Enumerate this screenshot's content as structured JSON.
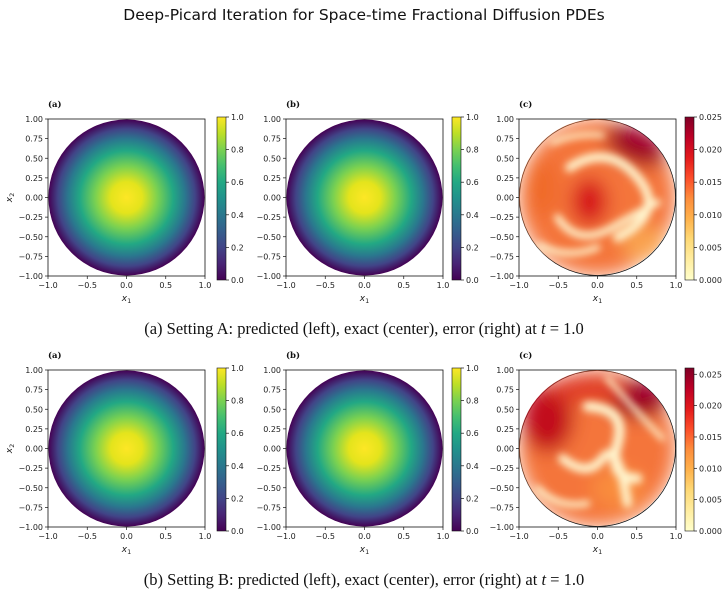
{
  "title": "Deep-Picard Iteration for Space-time Fractional Diffusion PDEs",
  "x_tick_labels": [
    "−1.0",
    "−0.5",
    "0.0",
    "0.5",
    "1.0"
  ],
  "y_tick_labels": [
    "1.00",
    "0.75",
    "0.50",
    "0.25",
    "0.00",
    "−0.25",
    "−0.50",
    "−0.75",
    "−1.00"
  ],
  "x_axis_label": "x",
  "x_axis_sub": "1",
  "y_axis_label": "x",
  "y_axis_sub": "2",
  "panel_labels": [
    "(a)",
    "(b)",
    "(c)"
  ],
  "colormaps": {
    "solution": "viridis",
    "error": "YlOrRd"
  },
  "rows": [
    {
      "caption_prefix": "(a) Setting A: predicted (left), exact (center), error (right) at ",
      "caption_t": "t",
      "caption_eq": " = 1.0",
      "value_colorbar_ticks": [
        "1.0",
        "0.8",
        "0.6",
        "0.4",
        "0.2",
        "0.0"
      ],
      "error_colorbar_ticks": [
        "0.025",
        "0.020",
        "0.015",
        "0.010",
        "0.005",
        "0.000"
      ],
      "error_max": 0.025
    },
    {
      "caption_prefix": "(b) Setting B: predicted (left), exact (center), error (right) at ",
      "caption_t": "t",
      "caption_eq": " = 1.0",
      "value_colorbar_ticks": [
        "1.0",
        "0.8",
        "0.6",
        "0.4",
        "0.2",
        "0.0"
      ],
      "error_colorbar_ticks": [
        "0.025",
        "0.020",
        "0.015",
        "0.010",
        "0.005",
        "0.000"
      ],
      "error_max": 0.026
    }
  ],
  "chart_data": [
    {
      "type": "heatmap",
      "title": "(a)",
      "xlabel": "x1",
      "ylabel": "x2",
      "xlim": [
        -1,
        1
      ],
      "ylim": [
        -1,
        1
      ],
      "clim": [
        0,
        1
      ],
      "colormap": "viridis",
      "domain": "unit disk"
    },
    {
      "type": "heatmap",
      "title": "(b)",
      "xlabel": "x1",
      "xlim": [
        -1,
        1
      ],
      "ylim": [
        -1,
        1
      ],
      "clim": [
        0,
        1
      ],
      "colormap": "viridis",
      "domain": "unit disk"
    },
    {
      "type": "heatmap",
      "title": "(c)",
      "xlabel": "x1",
      "xlim": [
        -1,
        1
      ],
      "ylim": [
        -1,
        1
      ],
      "clim": [
        0,
        0.025
      ],
      "colormap": "YlOrRd",
      "domain": "unit disk"
    },
    {
      "type": "heatmap",
      "title": "(a)",
      "xlabel": "x1",
      "ylabel": "x2",
      "xlim": [
        -1,
        1
      ],
      "ylim": [
        -1,
        1
      ],
      "clim": [
        0,
        1
      ],
      "colormap": "viridis",
      "domain": "unit disk"
    },
    {
      "type": "heatmap",
      "title": "(b)",
      "xlabel": "x1",
      "xlim": [
        -1,
        1
      ],
      "ylim": [
        -1,
        1
      ],
      "clim": [
        0,
        1
      ],
      "colormap": "viridis",
      "domain": "unit disk"
    },
    {
      "type": "heatmap",
      "title": "(c)",
      "xlabel": "x1",
      "xlim": [
        -1,
        1
      ],
      "ylim": [
        -1,
        1
      ],
      "clim": [
        0,
        0.026
      ],
      "colormap": "YlOrRd",
      "domain": "unit disk"
    }
  ]
}
